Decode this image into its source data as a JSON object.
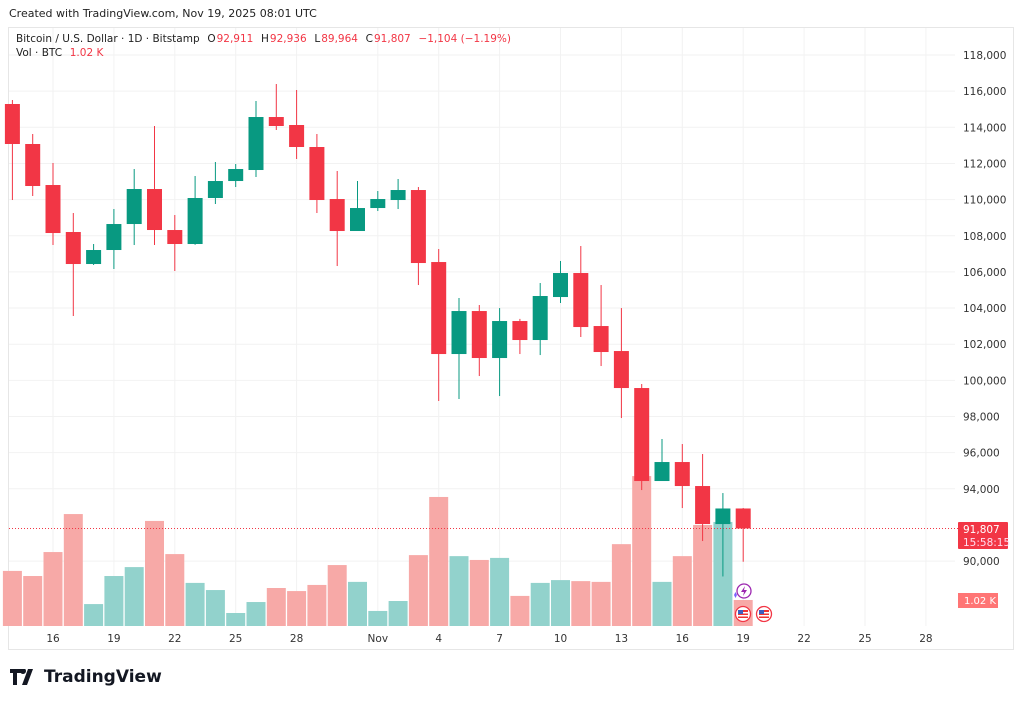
{
  "credit": "Created with TradingView.com, Nov 19, 2025 08:01 UTC",
  "legend": {
    "symbol": "Bitcoin / U.S. Dollar · 1D · Bitstamp",
    "o_label": "O",
    "o": "92,911",
    "h_label": "H",
    "h": "92,936",
    "l_label": "L",
    "l": "89,964",
    "c_label": "C",
    "c": "91,807",
    "change": "−1,104 (−1.19%)",
    "vol_label": "Vol · BTC",
    "vol": "1.02 K"
  },
  "price_label": {
    "price": "91,807",
    "countdown": "15:58:15"
  },
  "volume_label": "1.02 K",
  "logo": "TradingView",
  "colors": {
    "up": "#089981",
    "down": "#F23645",
    "vol_up": "#92D2CC",
    "vol_down": "#F7A9A7",
    "grid": "#f2f2f2"
  },
  "chart_data": {
    "type": "candlestick",
    "ylim": [
      88000,
      118500
    ],
    "yticks": [
      "118,000",
      "116,000",
      "114,000",
      "112,000",
      "110,000",
      "108,000",
      "106,000",
      "104,000",
      "102,000",
      "100,000",
      "98,000",
      "96,000",
      "94,000",
      "90,000"
    ],
    "ytick_values": [
      118000,
      116000,
      114000,
      112000,
      110000,
      108000,
      106000,
      104000,
      102000,
      100000,
      98000,
      96000,
      94000,
      90000
    ],
    "xticks": [
      {
        "label": "16",
        "day": 2
      },
      {
        "label": "19",
        "day": 5
      },
      {
        "label": "22",
        "day": 8
      },
      {
        "label": "25",
        "day": 11
      },
      {
        "label": "28",
        "day": 14
      },
      {
        "label": "Nov",
        "day": 18
      },
      {
        "label": "4",
        "day": 21
      },
      {
        "label": "7",
        "day": 24
      },
      {
        "label": "10",
        "day": 27
      },
      {
        "label": "13",
        "day": 30
      },
      {
        "label": "16",
        "day": 33
      },
      {
        "label": "19",
        "day": 36
      },
      {
        "label": "22",
        "day": 39
      },
      {
        "label": "25",
        "day": 42
      },
      {
        "label": "28",
        "day": 45
      }
    ],
    "grid": true,
    "last_price": 91807,
    "candles": [
      {
        "date": "2025-10-14",
        "o": 115289,
        "h": 115510,
        "l": 109977,
        "c": 113076,
        "v": 2.16
      },
      {
        "date": "2025-10-15",
        "o": 113076,
        "h": 113629,
        "l": 110199,
        "c": 110752,
        "v": 1.96
      },
      {
        "date": "2025-10-16",
        "o": 110807,
        "h": 112024,
        "l": 107487,
        "c": 108151,
        "v": 2.9
      },
      {
        "date": "2025-10-17",
        "o": 108207,
        "h": 109258,
        "l": 103559,
        "c": 106436,
        "v": 4.39
      },
      {
        "date": "2025-10-18",
        "o": 106436,
        "h": 107543,
        "l": 106381,
        "c": 107211,
        "v": 0.86
      },
      {
        "date": "2025-10-19",
        "o": 107211,
        "h": 109479,
        "l": 106160,
        "c": 108649,
        "v": 1.96
      },
      {
        "date": "2025-10-20",
        "o": 108649,
        "h": 111692,
        "l": 107487,
        "c": 110586,
        "v": 2.31
      },
      {
        "date": "2025-10-21",
        "o": 110586,
        "h": 114072,
        "l": 107487,
        "c": 108317,
        "v": 4.12
      },
      {
        "date": "2025-10-22",
        "o": 108317,
        "h": 109147,
        "l": 106049,
        "c": 107543,
        "v": 2.82
      },
      {
        "date": "2025-10-23",
        "o": 107543,
        "h": 111305,
        "l": 107500,
        "c": 110088,
        "v": 1.69
      },
      {
        "date": "2025-10-24",
        "o": 110088,
        "h": 112080,
        "l": 109756,
        "c": 111028,
        "v": 1.41
      },
      {
        "date": "2025-10-25",
        "o": 111028,
        "h": 111969,
        "l": 110696,
        "c": 111692,
        "v": 0.51
      },
      {
        "date": "2025-10-26",
        "o": 111637,
        "h": 115455,
        "l": 111250,
        "c": 114569,
        "v": 0.94
      },
      {
        "date": "2025-10-27",
        "o": 114569,
        "h": 116395,
        "l": 113850,
        "c": 114072,
        "v": 1.49
      },
      {
        "date": "2025-10-28",
        "o": 114127,
        "h": 116063,
        "l": 112246,
        "c": 112910,
        "v": 1.37
      },
      {
        "date": "2025-10-29",
        "o": 112910,
        "h": 113629,
        "l": 109258,
        "c": 109977,
        "v": 1.61
      },
      {
        "date": "2025-10-30",
        "o": 110032,
        "h": 111582,
        "l": 106325,
        "c": 108262,
        "v": 2.39
      },
      {
        "date": "2025-10-31",
        "o": 108262,
        "h": 111028,
        "l": 108262,
        "c": 109534,
        "v": 1.73
      },
      {
        "date": "2025-11-01",
        "o": 109534,
        "h": 110475,
        "l": 109368,
        "c": 110032,
        "v": 0.59
      },
      {
        "date": "2025-11-02",
        "o": 109977,
        "h": 111140,
        "l": 109479,
        "c": 110530,
        "v": 0.98
      },
      {
        "date": "2025-11-03",
        "o": 110530,
        "h": 110696,
        "l": 105274,
        "c": 106491,
        "v": 2.78
      },
      {
        "date": "2025-11-04",
        "o": 106546,
        "h": 107267,
        "l": 98856,
        "c": 101456,
        "v": 5.06
      },
      {
        "date": "2025-11-05",
        "o": 101456,
        "h": 104555,
        "l": 98967,
        "c": 103835,
        "v": 2.74
      },
      {
        "date": "2025-11-06",
        "o": 103835,
        "h": 104168,
        "l": 100239,
        "c": 101235,
        "v": 2.59
      },
      {
        "date": "2025-11-07",
        "o": 101235,
        "h": 104000,
        "l": 99132,
        "c": 103282,
        "v": 2.67
      },
      {
        "date": "2025-11-08",
        "o": 103282,
        "h": 103400,
        "l": 101456,
        "c": 102231,
        "v": 1.18
      },
      {
        "date": "2025-11-09",
        "o": 102231,
        "h": 105385,
        "l": 101400,
        "c": 104666,
        "v": 1.69
      },
      {
        "date": "2025-11-10",
        "o": 104610,
        "h": 106602,
        "l": 104278,
        "c": 105938,
        "v": 1.8
      },
      {
        "date": "2025-11-11",
        "o": 105938,
        "h": 107432,
        "l": 102398,
        "c": 102950,
        "v": 1.76
      },
      {
        "date": "2025-11-12",
        "o": 103005,
        "h": 105274,
        "l": 100792,
        "c": 101567,
        "v": 1.73
      },
      {
        "date": "2025-11-13",
        "o": 101622,
        "h": 104000,
        "l": 97915,
        "c": 99575,
        "v": 3.21
      },
      {
        "date": "2025-11-14",
        "o": 99575,
        "h": 99797,
        "l": 93931,
        "c": 94430,
        "v": 5.88
      },
      {
        "date": "2025-11-15",
        "o": 94430,
        "h": 96753,
        "l": 94430,
        "c": 95481,
        "v": 1.73
      },
      {
        "date": "2025-11-16",
        "o": 95481,
        "h": 96477,
        "l": 92935,
        "c": 94153,
        "v": 2.74
      },
      {
        "date": "2025-11-17",
        "o": 94153,
        "h": 95924,
        "l": 91110,
        "c": 92050,
        "v": 3.96
      },
      {
        "date": "2025-11-18",
        "o": 92050,
        "h": 93765,
        "l": 89150,
        "c": 92911,
        "v": 4.08
      },
      {
        "date": "2025-11-19",
        "o": 92911,
        "h": 92936,
        "l": 89964,
        "c": 91807,
        "v": 1.02
      }
    ]
  }
}
